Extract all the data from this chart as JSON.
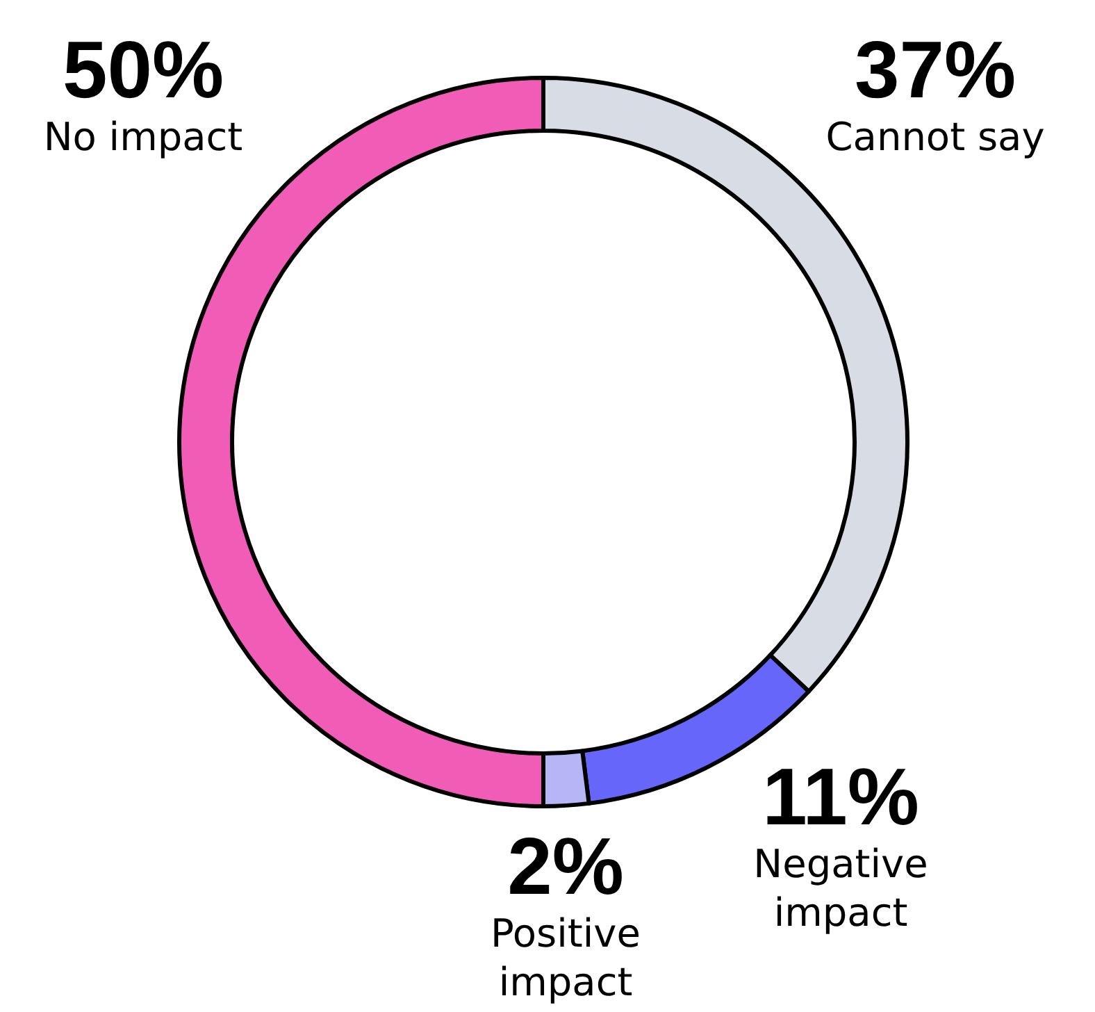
{
  "chart_data": {
    "type": "donut",
    "categories": [
      "Cannot say",
      "Negative impact",
      "Positive impact",
      "No impact"
    ],
    "values": [
      37,
      11,
      2,
      50
    ],
    "colors": [
      "#d8dce4",
      "#6666fa",
      "#b6b6f6",
      "#f05cb6"
    ],
    "value_labels": [
      "37%",
      "11%",
      "2%",
      "50%"
    ]
  }
}
